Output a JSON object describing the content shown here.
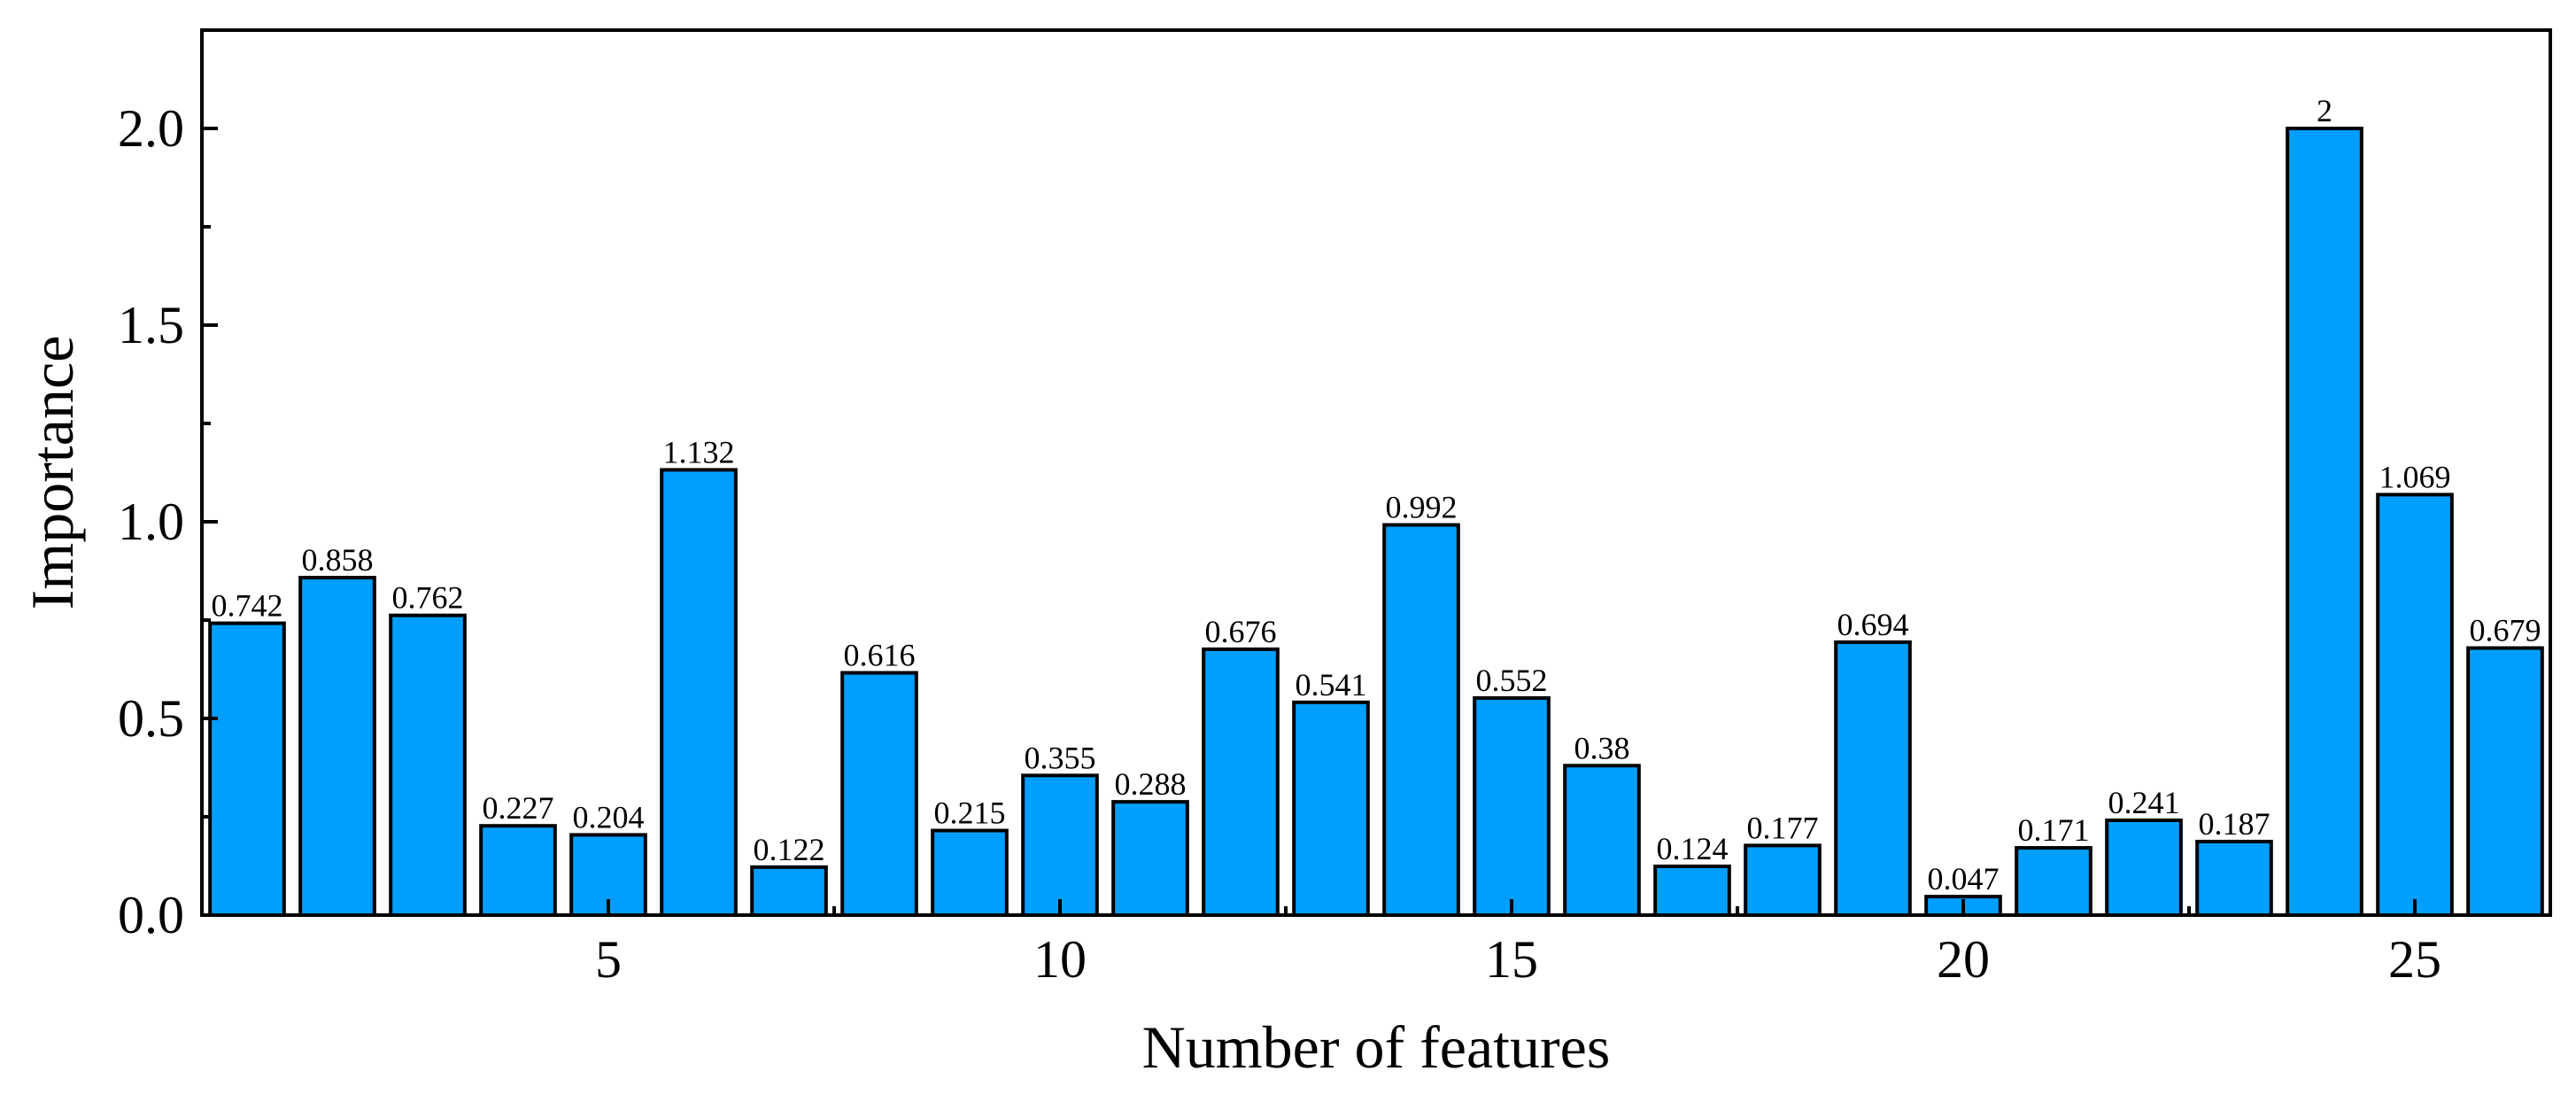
{
  "chart_data": {
    "type": "bar",
    "xlabel": "Number of features",
    "ylabel": "Importance",
    "x": [
      1,
      2,
      3,
      4,
      5,
      6,
      7,
      8,
      9,
      10,
      11,
      12,
      13,
      14,
      15,
      16,
      17,
      18,
      19,
      20,
      21,
      22,
      23,
      24,
      25,
      26
    ],
    "values": [
      0.742,
      0.858,
      0.762,
      0.227,
      0.204,
      1.132,
      0.122,
      0.616,
      0.215,
      0.355,
      0.288,
      0.676,
      0.541,
      0.992,
      0.552,
      0.38,
      0.124,
      0.177,
      0.694,
      0.047,
      0.171,
      0.241,
      0.187,
      2,
      1.069,
      0.679
    ],
    "data_labels": [
      "0.742",
      "0.858",
      "0.762",
      "0.227",
      "0.204",
      "1.132",
      "0.122",
      "0.616",
      "0.215",
      "0.355",
      "0.288",
      "0.676",
      "0.541",
      "0.992",
      "0.552",
      "0.38",
      "0.124",
      "0.177",
      "0.694",
      "0.047",
      "0.171",
      "0.241",
      "0.187",
      "2",
      "1.069",
      "0.679"
    ],
    "xlim": [
      0.5,
      26.5
    ],
    "ylim": [
      0,
      2.25
    ],
    "xticks": [
      5,
      10,
      15,
      20,
      25
    ],
    "xtick_labels": [
      "5",
      "10",
      "15",
      "20",
      "25"
    ],
    "yticks": [
      0,
      0.5,
      1,
      1.5,
      2
    ],
    "ytick_labels": [
      "0.0",
      "0.5",
      "1.0",
      "1.5",
      "2.0"
    ],
    "bar_color": "#009FFF",
    "edge_color": "#000000",
    "grid": false,
    "legend": "none"
  }
}
